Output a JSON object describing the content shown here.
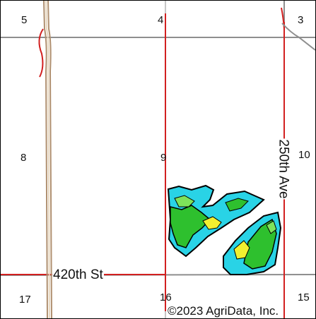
{
  "map": {
    "sections": [
      "5",
      "4",
      "3",
      "8",
      "9",
      "10",
      "17",
      "16",
      "15"
    ],
    "roads": {
      "east_west": "420th St",
      "north_south": "250th Ave"
    },
    "copyright": "©2023 AgriData, Inc."
  },
  "colors": {
    "highway": "#b09070",
    "section_line": "#909090",
    "red_road": "#d22020",
    "soil_cyan": "#29d3e6",
    "soil_green": "#2ec02e",
    "soil_yellow": "#f2f030",
    "soil_lime": "#7ee35a"
  }
}
